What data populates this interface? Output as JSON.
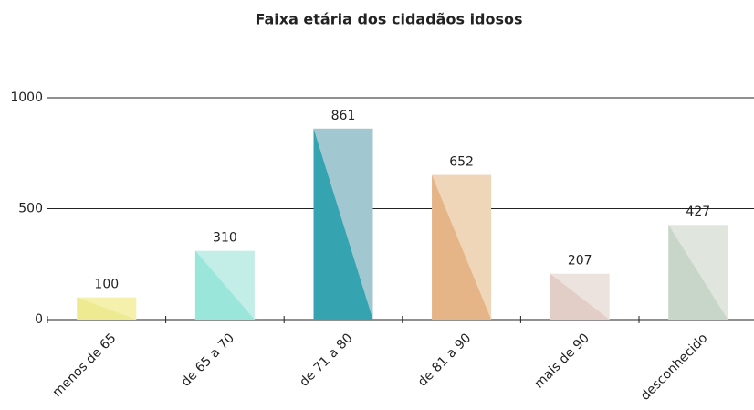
{
  "chart_data": {
    "type": "bar",
    "title": "Faixa etária dos cidadãos idosos",
    "categories": [
      "menos de 65",
      "de 65 a 70",
      "de 71 a 80",
      "de 81 a 90",
      "mais de 90",
      "desconhecido"
    ],
    "values": [
      100,
      310,
      861,
      652,
      207,
      427
    ],
    "colors": [
      "#f5f1ac",
      "#c2eee7",
      "#a1c8d0",
      "#f0d6b9",
      "#ede3de",
      "#e0e6dd"
    ],
    "shade_colors": [
      "#eeea92",
      "#9be6da",
      "#35a3b0",
      "#e5b587",
      "#e2cec6",
      "#c7d6c8"
    ],
    "ylim": [
      0,
      1000
    ],
    "yticks": [
      0,
      500,
      1000
    ],
    "grid": true
  }
}
